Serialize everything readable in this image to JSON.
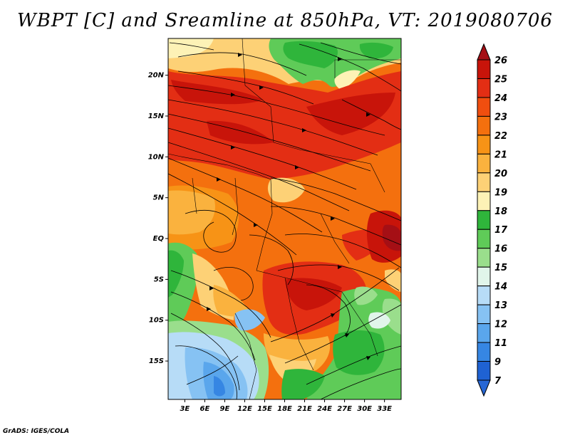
{
  "title": "WBPT [C] and Sreamline at 850hPa, VT: 2019080706",
  "credit": "GrADS: IGES/COLA",
  "map": {
    "lat_labels": [
      "20N",
      "15N",
      "10N",
      "5N",
      "EQ",
      "5S",
      "10S",
      "15S"
    ],
    "lon_labels": [
      "3E",
      "6E",
      "9E",
      "12E",
      "15E",
      "18E",
      "21E",
      "24E",
      "27E",
      "30E",
      "33E"
    ],
    "lat_values": [
      20,
      15,
      10,
      5,
      0,
      -5,
      -10,
      -15
    ],
    "lon_values": [
      3,
      6,
      9,
      12,
      15,
      18,
      21,
      24,
      27,
      30,
      33
    ],
    "lat_range": [
      -19.7,
      24.5
    ],
    "lon_range": [
      0.5,
      35.5
    ]
  },
  "colorbar": {
    "labels": [
      "26",
      "25",
      "24",
      "23",
      "22",
      "21",
      "20",
      "19",
      "18",
      "17",
      "16",
      "15",
      "14",
      "13",
      "12",
      "11",
      "9",
      "7"
    ],
    "colors": [
      "#a50f15",
      "#c8140a",
      "#e32e14",
      "#f04e0f",
      "#f4700e",
      "#f79316",
      "#fab23e",
      "#fdd176",
      "#fdf2b6",
      "#2fb53b",
      "#5fcb58",
      "#9ade8c",
      "#e1f5ea",
      "#b7dcf7",
      "#86c2f3",
      "#5aa6ec",
      "#3686e3",
      "#1f62d3",
      "#2767d5"
    ]
  }
}
